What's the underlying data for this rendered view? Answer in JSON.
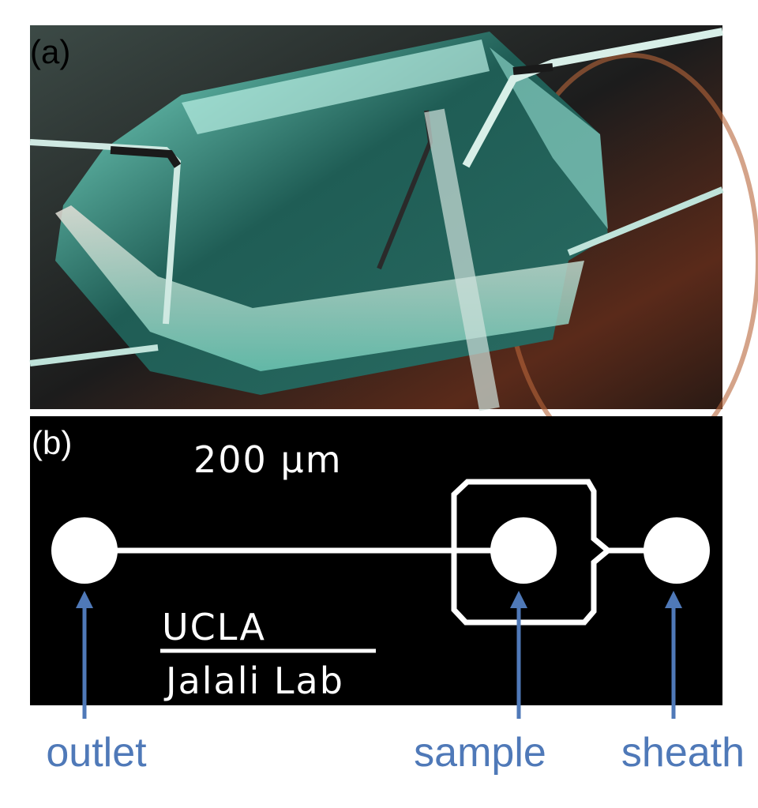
{
  "panel_a": {
    "label": "(a)"
  },
  "panel_b": {
    "label": "(b)",
    "scale": "200 μm",
    "logo": {
      "top": "UCLA",
      "bottom": "Jalali Lab"
    },
    "ports": [
      "outlet",
      "sample",
      "sheath"
    ]
  }
}
